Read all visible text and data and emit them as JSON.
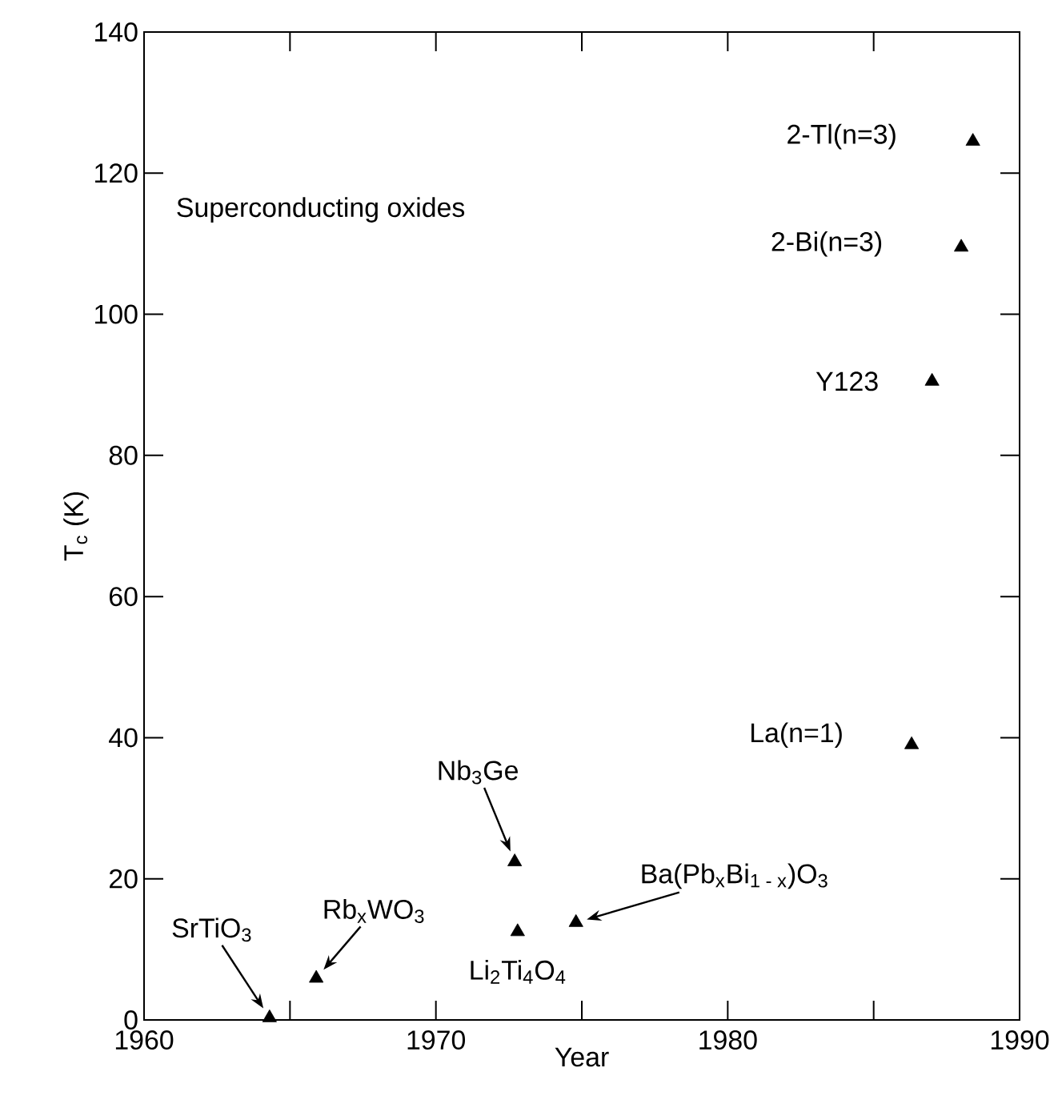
{
  "chart_data": {
    "type": "scatter",
    "xlabel": "Year",
    "ylabel": "T$_{c}$ (K)",
    "x": [
      1964.3,
      1965.9,
      1972.7,
      1972.8,
      1974.8,
      1986.3,
      1987.0,
      1988.0,
      1988.4
    ],
    "values": [
      0.3,
      5.9,
      22.4,
      12.5,
      13.8,
      39,
      90.5,
      109.5,
      124.5
    ],
    "color": "#000000",
    "marker": "triangle",
    "xlim": [
      1960,
      1990
    ],
    "xticks": [
      1960,
      {
        "value": 1965,
        "label": null
      },
      1970,
      {
        "value": 1975,
        "label": null
      },
      1980,
      {
        "value": 1985,
        "label": null
      },
      1990
    ],
    "ylim": [
      0,
      140
    ],
    "yticks": [
      0,
      20,
      40,
      60,
      80,
      100,
      120,
      140
    ],
    "annotations": [
      "Superconducting oxides",
      {
        "text": "SrTiO$_{3}$",
        "x": 1964.3,
        "y": 0.3
      },
      {
        "text": "Rb$_{x}$WO$_{3}$",
        "x": 1965.9,
        "y": 5.9
      },
      {
        "text": "Nb$_{3}$Ge",
        "x": 1972.7,
        "y": 22.4
      },
      {
        "text": "Li$_{2}$Ti$_{4}$O$_{4}$",
        "x": 1972.8,
        "y": 12.5
      },
      {
        "text": "Ba(Pb$_{x}$Bi$_{1 - x}$)O$_{3}$",
        "x": 1974.8,
        "y": 13.8
      },
      {
        "text": "La(n=1)",
        "x": 1986.3,
        "y": 39
      },
      {
        "text": "Y123",
        "x": 1987.0,
        "y": 90.5
      },
      {
        "text": "2-Bi(n=3)",
        "x": 1988.0,
        "y": 109.5
      },
      {
        "text": "2-Tl(n=3)",
        "x": 1988.4,
        "y": 124.5
      }
    ]
  }
}
